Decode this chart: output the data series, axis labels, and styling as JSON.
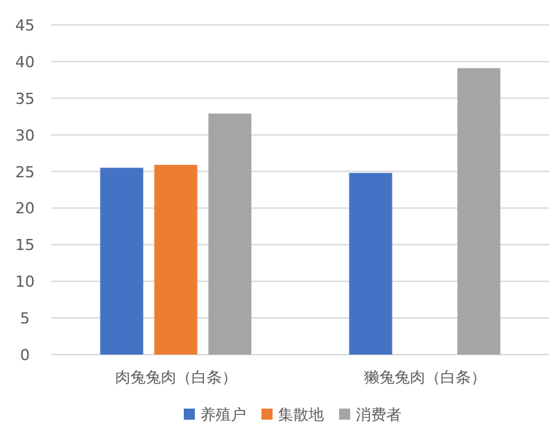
{
  "chart_data": {
    "type": "bar",
    "categories": [
      "肉兔兔肉（白条）",
      "獭兔兔肉（白条）"
    ],
    "series": [
      {
        "name": "养殖户",
        "color": "#4472c4",
        "values": [
          25.5,
          24.8
        ]
      },
      {
        "name": "集散地",
        "color": "#ed7d31",
        "values": [
          25.9,
          null
        ]
      },
      {
        "name": "消费者",
        "color": "#a5a5a5",
        "values": [
          32.9,
          39.1
        ]
      }
    ],
    "ylim": [
      0,
      45
    ],
    "yticks": [
      0,
      5,
      10,
      15,
      20,
      25,
      30,
      35,
      40,
      45
    ],
    "grid": "y",
    "legend": "bottom"
  }
}
